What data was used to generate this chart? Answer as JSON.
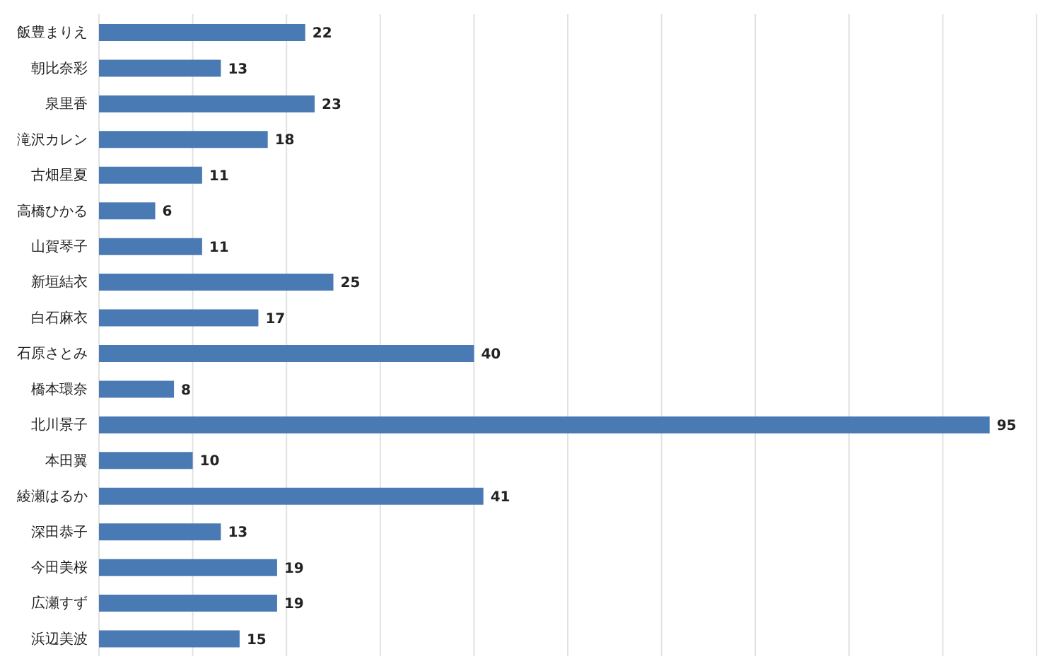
{
  "chart_data": {
    "type": "bar",
    "orientation": "horizontal",
    "categories": [
      "飯豊まりえ",
      "朝比奈彩",
      "泉里香",
      "滝沢カレン",
      "古畑星夏",
      "高橋ひかる",
      "山賀琴子",
      "新垣結衣",
      "白石麻衣",
      "石原さとみ",
      "橋本環奈",
      "北川景子",
      "本田翼",
      "綾瀬はるか",
      "深田恭子",
      "今田美桜",
      "広瀬すず",
      "浜辺美波"
    ],
    "values": [
      22,
      13,
      23,
      18,
      11,
      6,
      11,
      25,
      17,
      40,
      8,
      95,
      10,
      41,
      13,
      19,
      19,
      15
    ],
    "color": "#4a7ab4",
    "xlim": [
      0,
      100
    ],
    "xticks": [
      {
        "value": 0,
        "label": null
      },
      {
        "value": 10,
        "label": null
      },
      {
        "value": 20,
        "label": null
      },
      {
        "value": 30,
        "label": null
      },
      {
        "value": 40,
        "label": null
      },
      {
        "value": 50,
        "label": null
      },
      {
        "value": 60,
        "label": null
      },
      {
        "value": 70,
        "label": null
      },
      {
        "value": 80,
        "label": null
      },
      {
        "value": 90,
        "label": null
      },
      {
        "value": 100,
        "label": null
      }
    ],
    "grid": "x",
    "tick_labels": "y",
    "data_labels": true
  }
}
